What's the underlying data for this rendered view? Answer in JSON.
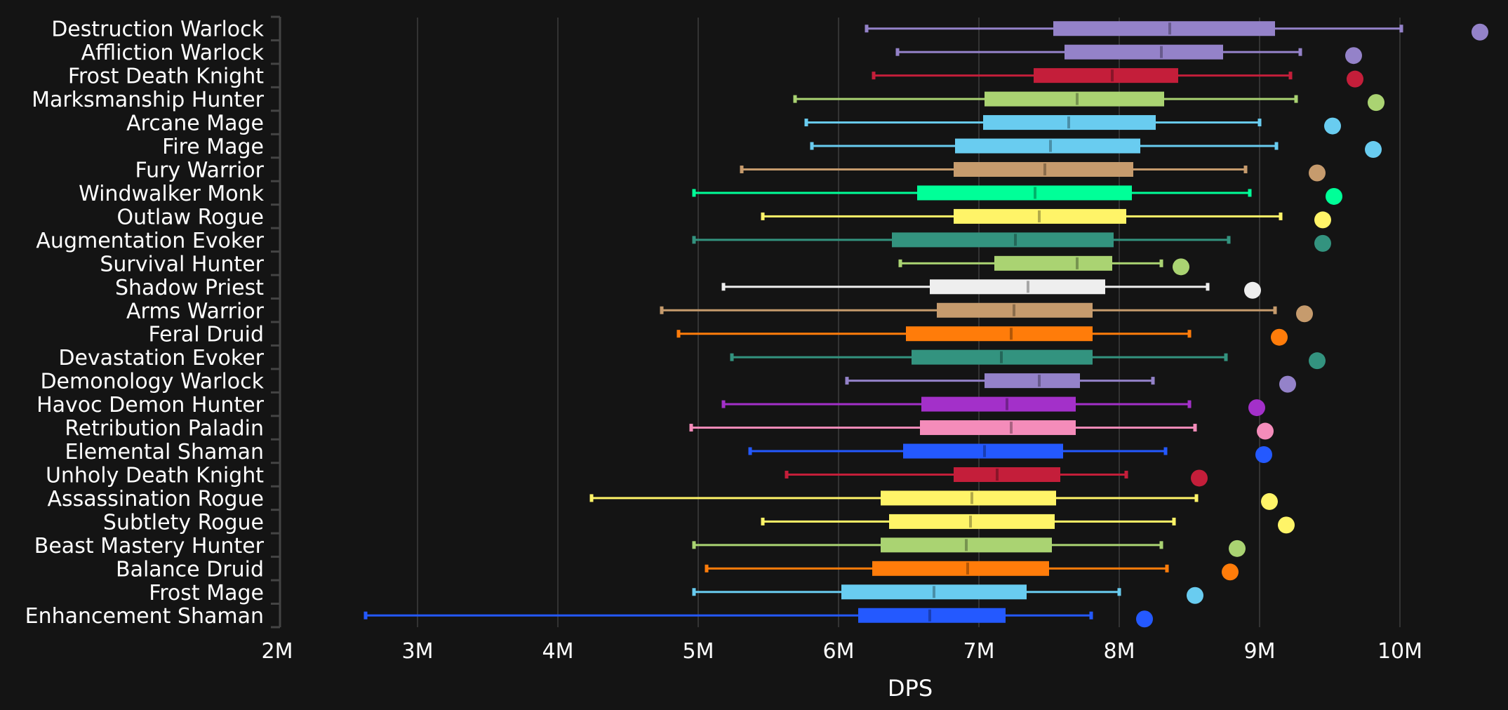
{
  "chart_data": {
    "type": "boxplot",
    "orientation": "horizontal",
    "title": "",
    "xlabel": "DPS",
    "ylabel": "",
    "xlim": [
      2000000,
      10700000
    ],
    "x_ticks": [
      2000000,
      3000000,
      4000000,
      5000000,
      6000000,
      7000000,
      8000000,
      9000000,
      10000000
    ],
    "x_tick_labels": [
      "2M",
      "3M",
      "4M",
      "5M",
      "6M",
      "7M",
      "8M",
      "9M",
      "10M"
    ],
    "grid": "vertical",
    "legend": "none",
    "value_unit": "millions",
    "series": [
      {
        "name": "Destruction Warlock",
        "color": "#9482C9",
        "min": 6.2,
        "q1": 7.53,
        "median": 8.36,
        "q3": 9.11,
        "max": 10.01,
        "outlier": 10.57
      },
      {
        "name": "Affliction Warlock",
        "color": "#9482C9",
        "min": 6.42,
        "q1": 7.61,
        "median": 8.3,
        "q3": 8.74,
        "max": 9.29,
        "outlier": 9.67
      },
      {
        "name": "Frost Death Knight",
        "color": "#C41E3A",
        "min": 6.25,
        "q1": 7.39,
        "median": 7.95,
        "q3": 8.42,
        "max": 9.22,
        "outlier": 9.68
      },
      {
        "name": "Marksmanship Hunter",
        "color": "#AAD372",
        "min": 5.69,
        "q1": 7.04,
        "median": 7.7,
        "q3": 8.32,
        "max": 9.26,
        "outlier": 9.83
      },
      {
        "name": "Arcane Mage",
        "color": "#69CCF0",
        "min": 5.77,
        "q1": 7.03,
        "median": 7.64,
        "q3": 8.26,
        "max": 9.0,
        "outlier": 9.52
      },
      {
        "name": "Fire Mage",
        "color": "#69CCF0",
        "min": 5.81,
        "q1": 6.83,
        "median": 7.51,
        "q3": 8.15,
        "max": 9.12,
        "outlier": 9.81
      },
      {
        "name": "Fury Warrior",
        "color": "#C69B6D",
        "min": 5.31,
        "q1": 6.82,
        "median": 7.47,
        "q3": 8.1,
        "max": 8.9,
        "outlier": 9.41
      },
      {
        "name": "Windwalker Monk",
        "color": "#00FF98",
        "min": 4.97,
        "q1": 6.56,
        "median": 7.4,
        "q3": 8.09,
        "max": 8.93,
        "outlier": 9.53
      },
      {
        "name": "Outlaw Rogue",
        "color": "#FFF468",
        "min": 5.46,
        "q1": 6.82,
        "median": 7.43,
        "q3": 8.05,
        "max": 9.15,
        "outlier": 9.45
      },
      {
        "name": "Augmentation Evoker",
        "color": "#33937F",
        "min": 4.97,
        "q1": 6.38,
        "median": 7.26,
        "q3": 7.96,
        "max": 8.78,
        "outlier": 9.45
      },
      {
        "name": "Survival Hunter",
        "color": "#AAD372",
        "min": 6.44,
        "q1": 7.11,
        "median": 7.7,
        "q3": 7.95,
        "max": 8.3,
        "outlier": 8.44
      },
      {
        "name": "Shadow Priest",
        "color": "#EEEEEE",
        "min": 5.18,
        "q1": 6.65,
        "median": 7.35,
        "q3": 7.9,
        "max": 8.63,
        "outlier": 8.95
      },
      {
        "name": "Arms Warrior",
        "color": "#C69B6D",
        "min": 4.74,
        "q1": 6.7,
        "median": 7.25,
        "q3": 7.81,
        "max": 9.11,
        "outlier": 9.32
      },
      {
        "name": "Feral Druid",
        "color": "#FF7C0A",
        "min": 4.86,
        "q1": 6.48,
        "median": 7.23,
        "q3": 7.81,
        "max": 8.5,
        "outlier": 9.14
      },
      {
        "name": "Devastation Evoker",
        "color": "#33937F",
        "min": 5.24,
        "q1": 6.52,
        "median": 7.16,
        "q3": 7.81,
        "max": 8.76,
        "outlier": 9.41
      },
      {
        "name": "Demonology Warlock",
        "color": "#9482C9",
        "min": 6.06,
        "q1": 7.04,
        "median": 7.43,
        "q3": 7.72,
        "max": 8.24,
        "outlier": 9.2
      },
      {
        "name": "Havoc Demon Hunter",
        "color": "#A330C9",
        "min": 5.18,
        "q1": 6.59,
        "median": 7.2,
        "q3": 7.69,
        "max": 8.5,
        "outlier": 8.98
      },
      {
        "name": "Retribution Paladin",
        "color": "#F48CBA",
        "min": 4.95,
        "q1": 6.58,
        "median": 7.23,
        "q3": 7.69,
        "max": 8.54,
        "outlier": 9.04
      },
      {
        "name": "Elemental Shaman",
        "color": "#2459FF",
        "min": 5.37,
        "q1": 6.46,
        "median": 7.04,
        "q3": 7.6,
        "max": 8.33,
        "outlier": 9.03
      },
      {
        "name": "Unholy Death Knight",
        "color": "#C41E3A",
        "min": 5.63,
        "q1": 6.82,
        "median": 7.13,
        "q3": 7.58,
        "max": 8.05,
        "outlier": 8.57
      },
      {
        "name": "Assassination Rogue",
        "color": "#FFF468",
        "min": 4.24,
        "q1": 6.3,
        "median": 6.95,
        "q3": 7.55,
        "max": 8.55,
        "outlier": 9.07
      },
      {
        "name": "Subtlety Rogue",
        "color": "#FFF468",
        "min": 5.46,
        "q1": 6.36,
        "median": 6.94,
        "q3": 7.54,
        "max": 8.39,
        "outlier": 9.19
      },
      {
        "name": "Beast Mastery Hunter",
        "color": "#AAD372",
        "min": 4.97,
        "q1": 6.3,
        "median": 6.91,
        "q3": 7.52,
        "max": 8.3,
        "outlier": 8.84
      },
      {
        "name": "Balance Druid",
        "color": "#FF7C0A",
        "min": 5.06,
        "q1": 6.24,
        "median": 6.92,
        "q3": 7.5,
        "max": 8.34,
        "outlier": 8.79
      },
      {
        "name": "Frost Mage",
        "color": "#69CCF0",
        "min": 4.97,
        "q1": 6.02,
        "median": 6.68,
        "q3": 7.34,
        "max": 8.0,
        "outlier": 8.54
      },
      {
        "name": "Enhancement Shaman",
        "color": "#2459FF",
        "min": 2.63,
        "q1": 6.14,
        "median": 6.65,
        "q3": 7.19,
        "max": 7.8,
        "outlier": 8.18
      }
    ]
  },
  "colors": {
    "background": "#141414",
    "grid": "#333333",
    "axis": "#444444",
    "text": "#ffffff"
  }
}
